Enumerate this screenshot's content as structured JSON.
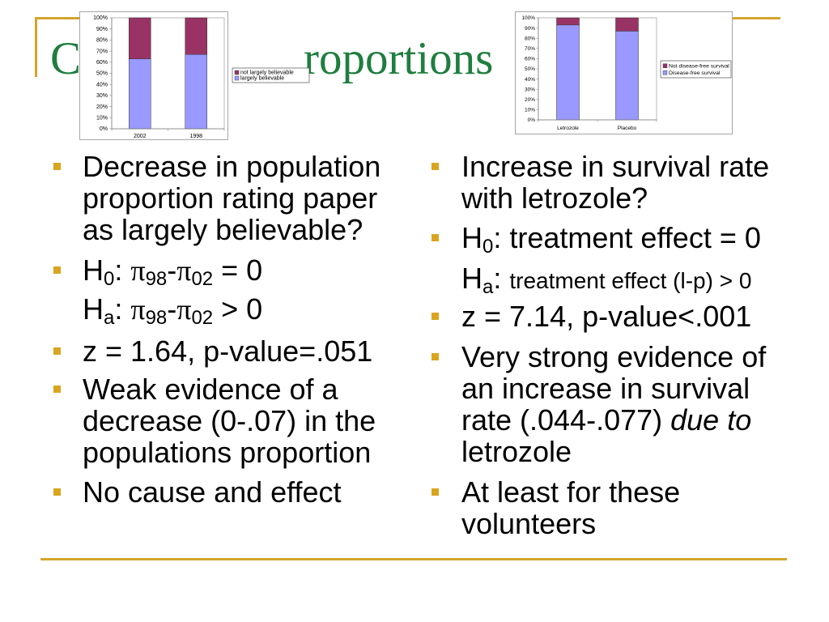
{
  "colors": {
    "title": "#1e7e3e",
    "accent_gold": "#d4a52c",
    "bullet": "#d9a520",
    "text": "#000000"
  },
  "title": {
    "visible_start": "C",
    "visible_end": "roportions"
  },
  "left_column": {
    "question": "Decrease in population proportion rating paper as largely believable?",
    "null_hypothesis": {
      "symbol": "H",
      "subscript": "0",
      "colon": ": ",
      "pi": "π",
      "first_year": "98",
      "minus": "-",
      "second_year": "02",
      "relation": " = 0"
    },
    "alternative_hypothesis": {
      "symbol": "H",
      "subscript": "a",
      "colon": ": ",
      "pi": "π",
      "first_year": "98",
      "minus": "-",
      "second_year": "02",
      "relation": " > 0"
    },
    "test_result": "z = 1.64, p-value=.051",
    "conclusion": "Weak evidence of a decrease (0-.07) in the populations proportion",
    "caveat": "No cause and effect"
  },
  "right_column": {
    "question": "Increase in survival rate with letrozole?",
    "null_hypothesis": {
      "symbol": "H",
      "subscript": "0",
      "statement": ": treatment effect = 0"
    },
    "alternative_hypothesis": {
      "symbol": "H",
      "subscript": "a",
      "colon": ": ",
      "statement": "treatment effect (l-p) > 0"
    },
    "test_result": "z = 7.14, p-value<.001",
    "conclusion": {
      "text_before": "Very strong evidence of an increase in survival rate (.044-.077) ",
      "emphasis": "due to",
      "text_after": " letrozole"
    },
    "caveat": "At least for these volunteers"
  },
  "chart_data": [
    {
      "type": "bar",
      "stacked": true,
      "categories": [
        "2002",
        "1998"
      ],
      "series": [
        {
          "name": "largely believable",
          "values": [
            63,
            67
          ],
          "color": "#9999ff"
        },
        {
          "name": "not largely believable",
          "values": [
            37,
            33
          ],
          "color": "#993366"
        }
      ],
      "ylim": [
        0,
        100
      ],
      "yticks": [
        "0%",
        "10%",
        "20%",
        "30%",
        "40%",
        "50%",
        "60%",
        "70%",
        "80%",
        "90%",
        "100%"
      ],
      "legend": "right",
      "grid": false
    },
    {
      "type": "bar",
      "stacked": true,
      "categories": [
        "Letrozole",
        "Placebo"
      ],
      "series": [
        {
          "name": "Disease-free survival",
          "values": [
            93,
            87
          ],
          "color": "#9999ff"
        },
        {
          "name": "Not disease-free survival",
          "values": [
            7,
            13
          ],
          "color": "#993366"
        }
      ],
      "ylim": [
        0,
        100
      ],
      "yticks": [
        "0%",
        "10%",
        "20%",
        "30%",
        "40%",
        "50%",
        "60%",
        "70%",
        "80%",
        "90%",
        "100%"
      ],
      "legend": "right",
      "grid": false
    }
  ]
}
